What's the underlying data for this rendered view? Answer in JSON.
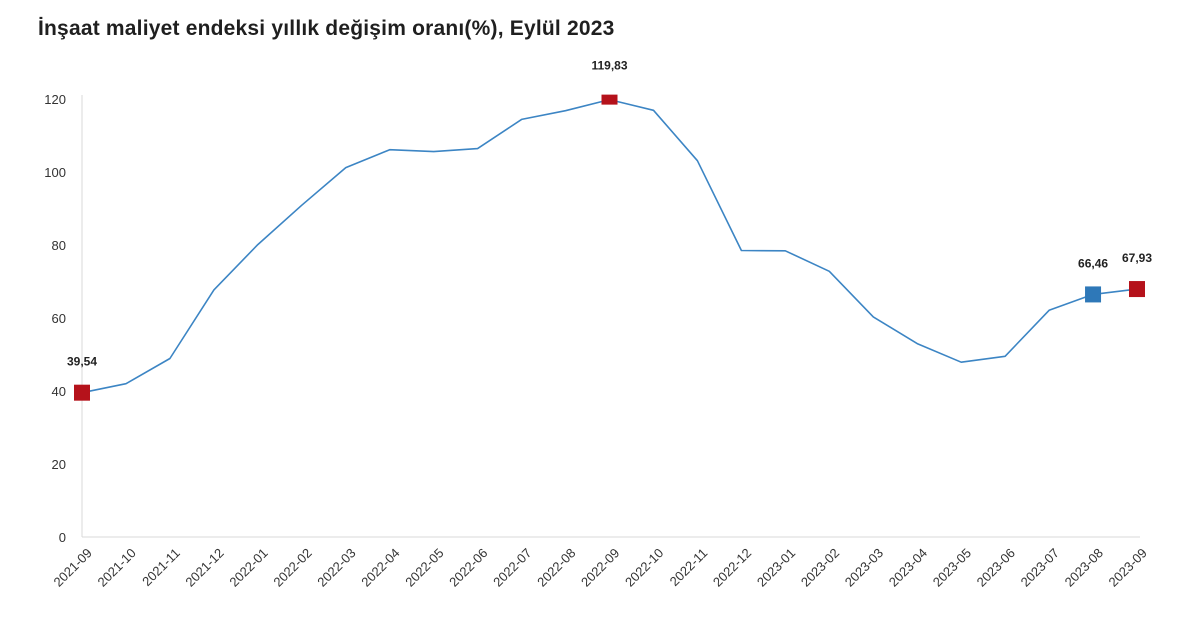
{
  "chart_data": {
    "type": "line",
    "title": "İnşaat maliyet endeksi yıllık değişim oranı(%), Eylül 2023",
    "xlabel": "",
    "ylabel": "",
    "ylim": [
      0,
      120
    ],
    "yticks": [
      0,
      20,
      40,
      60,
      80,
      100,
      120
    ],
    "grid": false,
    "legend": "none",
    "categories": [
      "2021-09",
      "2021-10",
      "2021-11",
      "2021-12",
      "2022-01",
      "2022-02",
      "2022-03",
      "2022-04",
      "2022-05",
      "2022-06",
      "2022-07",
      "2022-08",
      "2022-09",
      "2022-10",
      "2022-11",
      "2022-12",
      "2023-01",
      "2023-02",
      "2023-03",
      "2023-04",
      "2023-05",
      "2023-06",
      "2023-07",
      "2023-08",
      "2023-09"
    ],
    "series": [
      {
        "values": [
          39.54,
          42.0,
          48.9,
          67.7,
          80.1,
          90.9,
          101.2,
          106.1,
          105.6,
          106.4,
          114.4,
          116.8,
          119.83,
          116.9,
          103.1,
          78.5,
          78.4,
          72.8,
          60.3,
          53.0,
          47.9,
          49.5,
          62.1,
          66.46,
          67.93
        ],
        "color": "#3c85c4"
      }
    ],
    "highlights": [
      {
        "category": "2021-09",
        "value": 39.54,
        "label": "39,54",
        "color": "#b5121b"
      },
      {
        "category": "2022-09",
        "value": 119.83,
        "label": "119,83",
        "color": "#b5121b"
      },
      {
        "category": "2023-08",
        "value": 66.46,
        "label": "66,46",
        "color": "#2e78b8"
      },
      {
        "category": "2023-09",
        "value": 67.93,
        "label": "67,93",
        "color": "#b5121b"
      }
    ],
    "axis_color": "#d9d9d9"
  }
}
